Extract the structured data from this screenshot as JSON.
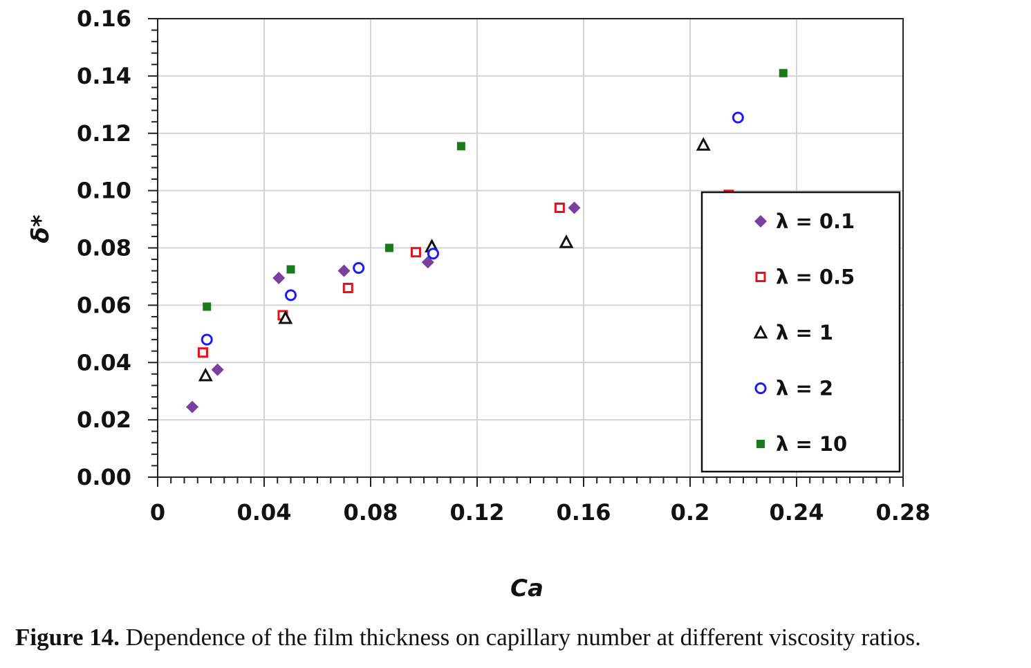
{
  "chart_data": {
    "type": "scatter",
    "xlabel": "Ca",
    "ylabel": "δ*",
    "xlim": [
      0,
      0.28
    ],
    "ylim": [
      0,
      0.16
    ],
    "x_ticks": [
      "0",
      "0.04",
      "0.08",
      "0.12",
      "0.16",
      "0.2",
      "0.24",
      "0.28"
    ],
    "y_ticks": [
      "0.00",
      "0.02",
      "0.04",
      "0.06",
      "0.08",
      "0.10",
      "0.12",
      "0.14",
      "0.16"
    ],
    "grid": true,
    "legend_position": "right",
    "series": [
      {
        "name": "λ = 0.1",
        "marker": "diamond",
        "color": "#7b3f9e",
        "points": [
          [
            0.013,
            0.0245
          ],
          [
            0.0225,
            0.0375
          ],
          [
            0.0455,
            0.0695
          ],
          [
            0.07,
            0.072
          ],
          [
            0.1015,
            0.075
          ],
          [
            0.1565,
            0.094
          ]
        ]
      },
      {
        "name": "λ = 0.5",
        "marker": "open-square",
        "color": "#e8101a",
        "points": [
          [
            0.017,
            0.0435
          ],
          [
            0.047,
            0.0565
          ],
          [
            0.0715,
            0.066
          ],
          [
            0.097,
            0.0785
          ],
          [
            0.151,
            0.094
          ],
          [
            0.2145,
            0.0985
          ]
        ]
      },
      {
        "name": "λ = 1",
        "marker": "open-triangle",
        "color": "#111111",
        "points": [
          [
            0.018,
            0.0355
          ],
          [
            0.048,
            0.0555
          ],
          [
            0.103,
            0.0805
          ],
          [
            0.1535,
            0.082
          ],
          [
            0.205,
            0.116
          ]
        ]
      },
      {
        "name": "λ = 2",
        "marker": "open-circle",
        "color": "#1a1aff",
        "points": [
          [
            0.0185,
            0.048
          ],
          [
            0.05,
            0.0635
          ],
          [
            0.0755,
            0.073
          ],
          [
            0.1035,
            0.078
          ],
          [
            0.218,
            0.1255
          ]
        ]
      },
      {
        "name": "λ = 10",
        "marker": "filled-square",
        "color": "#1a7a1a",
        "points": [
          [
            0.0185,
            0.0595
          ],
          [
            0.05,
            0.0725
          ],
          [
            0.087,
            0.08
          ],
          [
            0.114,
            0.1155
          ],
          [
            0.235,
            0.141
          ]
        ]
      }
    ]
  },
  "caption": {
    "label": "Figure 14.",
    "text": " Dependence of the film thickness on capillary number at different viscosity ratios."
  }
}
